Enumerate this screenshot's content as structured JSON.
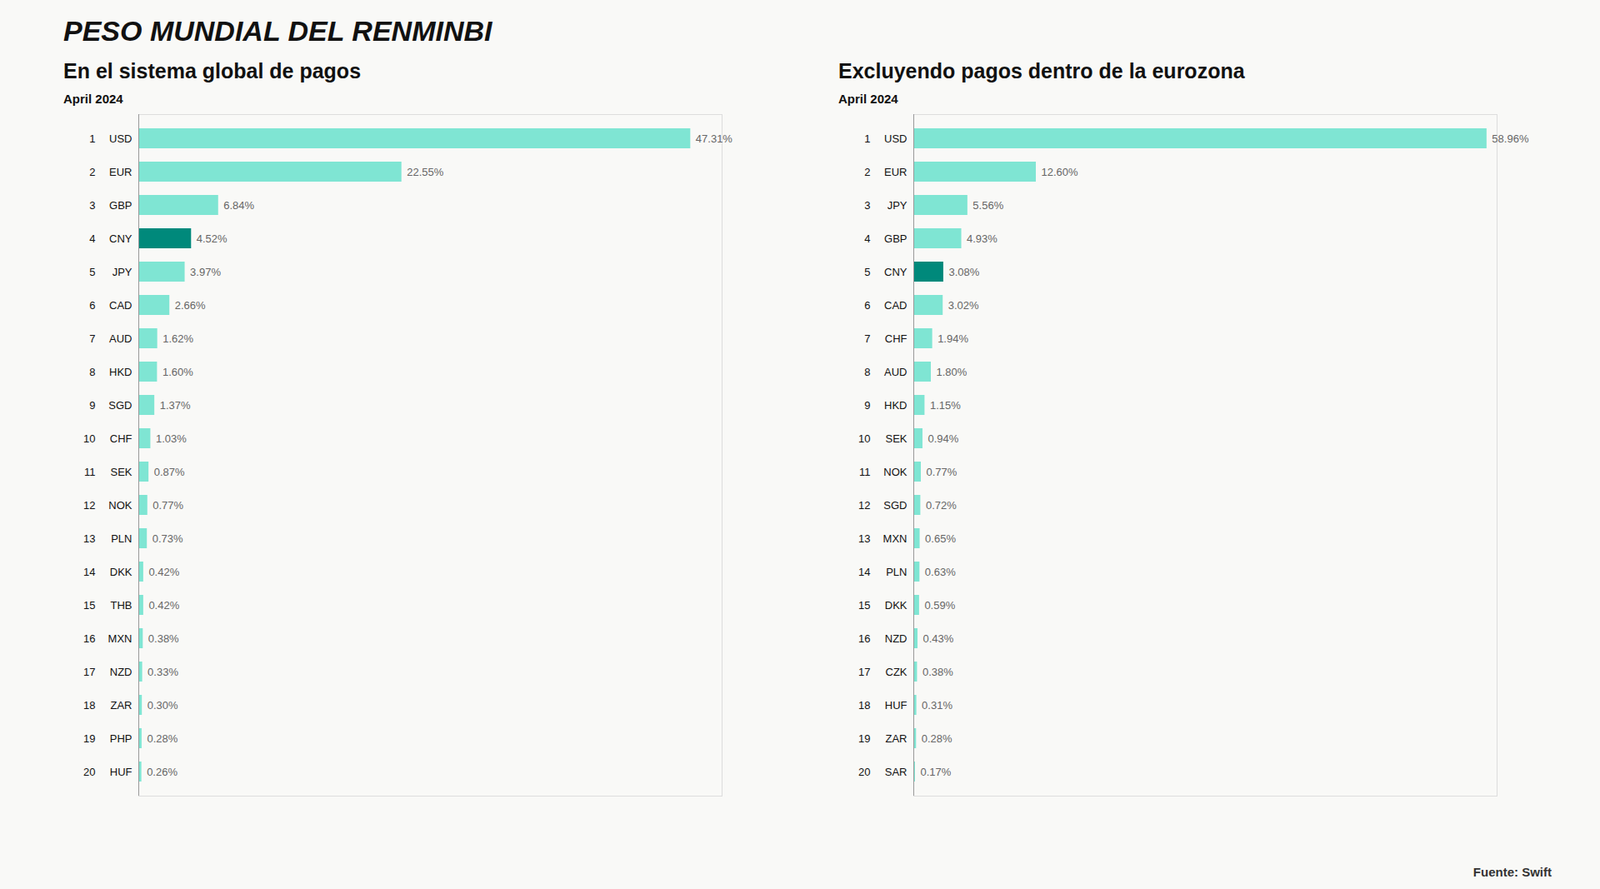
{
  "title": "PESO MUNDIAL DEL RENMINBI",
  "source": "Fuente: Swift",
  "chart_data": [
    {
      "type": "bar",
      "orientation": "horizontal",
      "subtitle": "En el sistema global de pagos",
      "annotations": [
        "April 2024"
      ],
      "categories": [
        "USD",
        "EUR",
        "GBP",
        "CNY",
        "JPY",
        "CAD",
        "AUD",
        "HKD",
        "SGD",
        "CHF",
        "SEK",
        "NOK",
        "PLN",
        "DKK",
        "THB",
        "MXN",
        "NZD",
        "ZAR",
        "PHP",
        "HUF"
      ],
      "ranks": [
        1,
        2,
        3,
        4,
        5,
        6,
        7,
        8,
        9,
        10,
        11,
        12,
        13,
        14,
        15,
        16,
        17,
        18,
        19,
        20
      ],
      "values": [
        47.31,
        22.55,
        6.84,
        4.52,
        3.97,
        2.66,
        1.62,
        1.6,
        1.37,
        1.03,
        0.87,
        0.77,
        0.73,
        0.42,
        0.42,
        0.38,
        0.33,
        0.3,
        0.28,
        0.26
      ],
      "value_labels": [
        "47.31%",
        "22.55%",
        "6.84%",
        "4.52%",
        "3.97%",
        "2.66%",
        "1.62%",
        "1.60%",
        "1.37%",
        "1.03%",
        "0.87%",
        "0.77%",
        "0.73%",
        "0.42%",
        "0.42%",
        "0.38%",
        "0.33%",
        "0.30%",
        "0.28%",
        "0.26%"
      ],
      "colors": [
        "#7fe5d3",
        "#7fe5d3",
        "#7fe5d3",
        "#00897b",
        "#7fe5d3",
        "#7fe5d3",
        "#7fe5d3",
        "#7fe5d3",
        "#7fe5d3",
        "#7fe5d3",
        "#7fe5d3",
        "#7fe5d3",
        "#7fe5d3",
        "#7fe5d3",
        "#7fe5d3",
        "#7fe5d3",
        "#7fe5d3",
        "#7fe5d3",
        "#7fe5d3",
        "#7fe5d3"
      ],
      "xlim": [
        0,
        50
      ],
      "data_labels": true,
      "tick_labels": "y"
    },
    {
      "type": "bar",
      "orientation": "horizontal",
      "subtitle": "Excluyendo pagos dentro de la eurozona",
      "annotations": [
        "April 2024"
      ],
      "categories": [
        "USD",
        "EUR",
        "JPY",
        "GBP",
        "CNY",
        "CAD",
        "CHF",
        "AUD",
        "HKD",
        "SEK",
        "NOK",
        "SGD",
        "MXN",
        "PLN",
        "DKK",
        "NZD",
        "CZK",
        "HUF",
        "ZAR",
        "SAR"
      ],
      "ranks": [
        1,
        2,
        3,
        4,
        5,
        6,
        7,
        8,
        9,
        10,
        11,
        12,
        13,
        14,
        15,
        16,
        17,
        18,
        19,
        20
      ],
      "values": [
        58.96,
        12.6,
        5.56,
        4.93,
        3.08,
        3.02,
        1.94,
        1.8,
        1.15,
        0.94,
        0.77,
        0.72,
        0.65,
        0.63,
        0.59,
        0.43,
        0.38,
        0.31,
        0.28,
        0.17
      ],
      "value_labels": [
        "58.96%",
        "12.60%",
        "5.56%",
        "4.93%",
        "3.08%",
        "3.02%",
        "1.94%",
        "1.80%",
        "1.15%",
        "0.94%",
        "0.77%",
        "0.72%",
        "0.65%",
        "0.63%",
        "0.59%",
        "0.43%",
        "0.38%",
        "0.31%",
        "0.28%",
        "0.17%"
      ],
      "colors": [
        "#7fe5d3",
        "#7fe5d3",
        "#7fe5d3",
        "#7fe5d3",
        "#00897b",
        "#7fe5d3",
        "#7fe5d3",
        "#7fe5d3",
        "#7fe5d3",
        "#7fe5d3",
        "#7fe5d3",
        "#7fe5d3",
        "#7fe5d3",
        "#7fe5d3",
        "#7fe5d3",
        "#7fe5d3",
        "#7fe5d3",
        "#7fe5d3",
        "#7fe5d3",
        "#7fe5d3"
      ],
      "xlim": [
        0,
        60
      ],
      "data_labels": true,
      "tick_labels": "y"
    }
  ]
}
